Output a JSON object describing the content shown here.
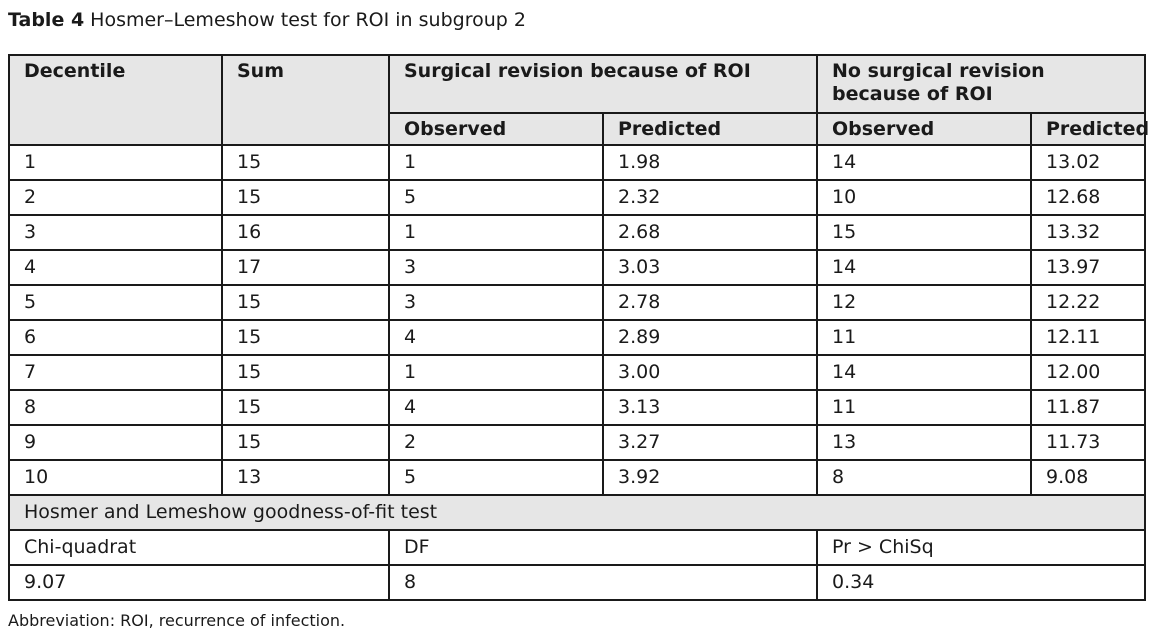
{
  "caption": {
    "label": "Table 4",
    "text": "Hosmer–Lemeshow test for ROI in subgroup 2"
  },
  "table": {
    "headers": {
      "decentile": "Decentile",
      "sum": "Sum",
      "surgical_group": "Surgical revision because of ROI",
      "nonsurgical_group": "No surgical revision because of ROI",
      "observed_1": "Observed",
      "predicted_1": "Predicted",
      "observed_2": "Observed",
      "predicted_2": "Predicted"
    },
    "rows": [
      [
        "1",
        "15",
        "1",
        "1.98",
        "14",
        "13.02"
      ],
      [
        "2",
        "15",
        "5",
        "2.32",
        "10",
        "12.68"
      ],
      [
        "3",
        "16",
        "1",
        "2.68",
        "15",
        "13.32"
      ],
      [
        "4",
        "17",
        "3",
        "3.03",
        "14",
        "13.97"
      ],
      [
        "5",
        "15",
        "3",
        "2.78",
        "12",
        "12.22"
      ],
      [
        "6",
        "15",
        "4",
        "2.89",
        "11",
        "12.11"
      ],
      [
        "7",
        "15",
        "1",
        "3.00",
        "14",
        "12.00"
      ],
      [
        "8",
        "15",
        "4",
        "3.13",
        "11",
        "11.87"
      ],
      [
        "9",
        "15",
        "2",
        "3.27",
        "13",
        "11.73"
      ],
      [
        "10",
        "13",
        "5",
        "3.92",
        "8",
        "9.08"
      ]
    ],
    "gof": {
      "title": "Hosmer and Lemeshow goodness-of-fit test",
      "labels": [
        "Chi-quadrat",
        "DF",
        "Pr > ChiSq"
      ],
      "values": [
        "9.07",
        "8",
        "0.34"
      ]
    }
  },
  "footnote": "Abbreviation: ROI, recurrence of infection.",
  "colors": {
    "header_bg": "#e6e6e6",
    "border": "#1a1a1a"
  }
}
